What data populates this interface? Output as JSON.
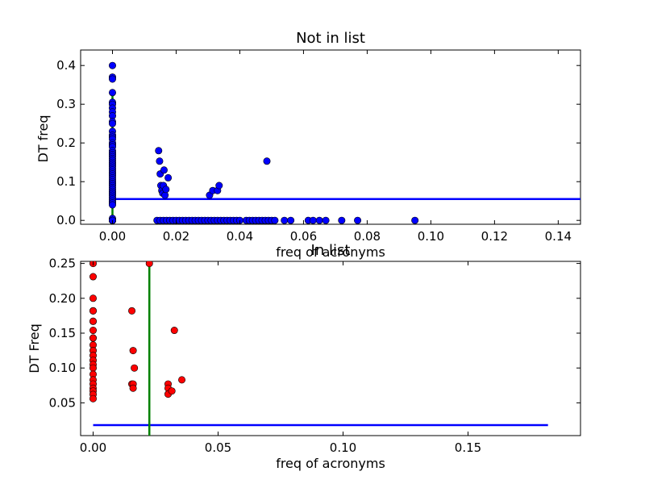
{
  "chart_data": [
    {
      "type": "scatter",
      "title": "Not in list",
      "xlabel": "freq of acronyms",
      "ylabel": "DT freq",
      "xlim": [
        -0.01,
        0.147
      ],
      "ylim": [
        -0.01,
        0.44
      ],
      "xticks": [
        0.0,
        0.02,
        0.04,
        0.06,
        0.08,
        0.1,
        0.12,
        0.14
      ],
      "xtick_labels": [
        "0.00",
        "0.02",
        "0.04",
        "0.06",
        "0.08",
        "0.10",
        "0.12",
        "0.14"
      ],
      "yticks": [
        0.0,
        0.1,
        0.2,
        0.3,
        0.4
      ],
      "ytick_labels": [
        "0.0",
        "0.1",
        "0.2",
        "0.3",
        "0.4"
      ],
      "grid": false,
      "series": [
        {
          "marker_color": "#0000ff",
          "x": [
            0,
            0,
            0,
            0,
            0,
            0,
            0,
            0,
            0,
            0,
            0,
            0,
            0,
            0,
            0,
            0,
            0,
            0,
            0,
            0,
            0,
            0,
            0,
            0,
            0,
            0,
            0,
            0,
            0,
            0,
            0,
            0,
            0,
            0,
            0,
            0,
            0,
            0,
            0,
            0,
            0,
            0,
            0,
            0,
            0,
            0,
            0,
            0,
            0,
            0,
            0,
            0,
            0,
            0,
            0,
            0,
            0,
            0,
            0.0145,
            0.0148,
            0.015,
            0.0152,
            0.0155,
            0.0158,
            0.016,
            0.0162,
            0.0165,
            0.0168,
            0.0175,
            0.0305,
            0.0315,
            0.033,
            0.0335,
            0.0485,
            0.014,
            0.015,
            0.016,
            0.017,
            0.018,
            0.019,
            0.02,
            0.021,
            0.022,
            0.023,
            0.024,
            0.025,
            0.026,
            0.027,
            0.028,
            0.029,
            0.03,
            0.031,
            0.032,
            0.033,
            0.034,
            0.035,
            0.036,
            0.037,
            0.038,
            0.039,
            0.04,
            0.042,
            0.043,
            0.044,
            0.045,
            0.046,
            0.047,
            0.048,
            0.049,
            0.05,
            0.051,
            0.054,
            0.056,
            0.0615,
            0.063,
            0.065,
            0.067,
            0.072,
            0.077,
            0.095
          ],
          "y": [
            0.4,
            0.37,
            0.365,
            0.33,
            0.305,
            0.3,
            0.29,
            0.28,
            0.27,
            0.255,
            0.25,
            0.23,
            0.22,
            0.215,
            0.21,
            0.2,
            0.195,
            0.19,
            0.18,
            0.175,
            0.17,
            0.165,
            0.16,
            0.155,
            0.15,
            0.145,
            0.14,
            0.135,
            0.13,
            0.125,
            0.12,
            0.115,
            0.11,
            0.105,
            0.1,
            0.095,
            0.09,
            0.085,
            0.08,
            0.075,
            0.07,
            0.065,
            0.06,
            0.055,
            0.05,
            0.045,
            0.04,
            0.0,
            0.0,
            0.0,
            0.005,
            0.0,
            0.0,
            0.0,
            0.0,
            0.0,
            0.0,
            0.0,
            0.18,
            0.153,
            0.12,
            0.09,
            0.077,
            0.07,
            0.09,
            0.13,
            0.065,
            0.08,
            0.11,
            0.065,
            0.077,
            0.077,
            0.09,
            0.153,
            0,
            0,
            0,
            0,
            0,
            0,
            0,
            0,
            0,
            0,
            0,
            0,
            0,
            0,
            0,
            0,
            0,
            0,
            0,
            0,
            0,
            0,
            0,
            0,
            0,
            0,
            0,
            0,
            0,
            0,
            0,
            0,
            0,
            0,
            0,
            0,
            0,
            0,
            0,
            0,
            0,
            0,
            0,
            0,
            0,
            0
          ]
        }
      ],
      "lines": [
        {
          "color": "#0000ff",
          "x": [
            0.0,
            0.147
          ],
          "y": [
            0.055,
            0.055
          ]
        },
        {
          "color": "#008000",
          "x": [
            0.0,
            0.0
          ],
          "y": [
            0.0,
            0.33
          ]
        }
      ]
    },
    {
      "type": "scatter",
      "title": "In list",
      "xlabel": "freq of acronyms",
      "ylabel": "DT Freq",
      "xlim": [
        -0.005,
        0.195
      ],
      "ylim": [
        0.003,
        0.253
      ],
      "xticks": [
        0.0,
        0.05,
        0.1,
        0.15
      ],
      "xtick_labels": [
        "0.00",
        "0.05",
        "0.10",
        "0.15"
      ],
      "yticks": [
        0.05,
        0.1,
        0.15,
        0.2,
        0.25
      ],
      "ytick_labels": [
        "0.05",
        "0.10",
        "0.15",
        "0.20",
        "0.25"
      ],
      "grid": false,
      "series": [
        {
          "marker_color": "#ff0000",
          "x": [
            0,
            0,
            0,
            0,
            0,
            0,
            0,
            0,
            0,
            0,
            0,
            0,
            0,
            0,
            0,
            0,
            0,
            0,
            0,
            0,
            0,
            0,
            0,
            0.0155,
            0.016,
            0.0165,
            0.0155,
            0.016,
            0.016,
            0.0225,
            0.03,
            0.03,
            0.03,
            0.0325,
            0.0315,
            0.0355
          ],
          "y": [
            0.25,
            0.231,
            0.2,
            0.182,
            0.182,
            0.167,
            0.167,
            0.154,
            0.143,
            0.143,
            0.133,
            0.125,
            0.118,
            0.111,
            0.105,
            0.1,
            0.091,
            0.083,
            0.077,
            0.071,
            0.067,
            0.062,
            0.056,
            0.182,
            0.125,
            0.1,
            0.077,
            0.077,
            0.071,
            0.25,
            0.077,
            0.071,
            0.0625,
            0.154,
            0.067,
            0.083
          ]
        }
      ],
      "lines": [
        {
          "color": "#0000ff",
          "x": [
            0.0,
            0.182
          ],
          "y": [
            0.018,
            0.018
          ]
        },
        {
          "color": "#008000",
          "x": [
            0.0225,
            0.0225
          ],
          "y": [
            0.003,
            0.253
          ]
        }
      ]
    }
  ]
}
